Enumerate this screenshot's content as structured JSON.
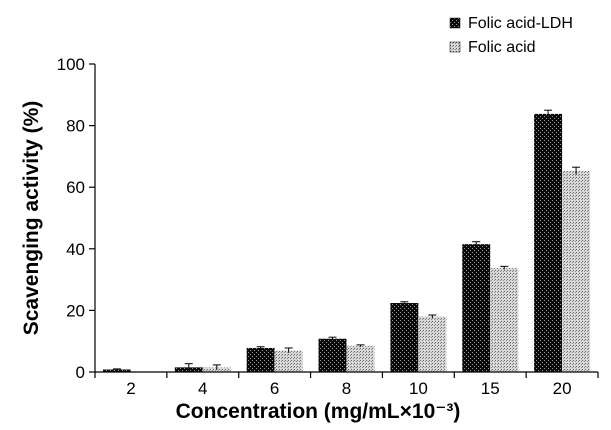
{
  "chart_data": {
    "type": "bar",
    "categories": [
      "2",
      "4",
      "6",
      "8",
      "10",
      "15",
      "20"
    ],
    "series": [
      {
        "name": "Folic acid-LDH",
        "values": [
          0.8,
          1.5,
          7.8,
          10.8,
          22.4,
          41.5,
          83.8
        ],
        "errors": [
          0.2,
          1.2,
          0.4,
          0.5,
          0.4,
          0.8,
          1.2
        ],
        "pattern": "dark-dots"
      },
      {
        "name": "Folic acid",
        "values": [
          0.0,
          1.5,
          7.0,
          8.5,
          18.0,
          33.8,
          65.3
        ],
        "errors": [
          0.0,
          0.8,
          0.8,
          0.3,
          0.5,
          0.5,
          1.2
        ],
        "pattern": "light-dots"
      }
    ],
    "title": "",
    "xlabel": "Concentration (mg/mL×10⁻³)",
    "ylabel": "Scavenging activity (%)",
    "ylim": [
      0,
      100
    ],
    "yticks": [
      0,
      20,
      40,
      60,
      80,
      100
    ],
    "grid": false,
    "legend_position": "top-right",
    "colors": {
      "dark_fill": "#0a0a0a",
      "dark_dots": "#9a9a9a",
      "light_fill": "#d8d8d8",
      "light_dots": "#6a6a6a",
      "axis": "#000000",
      "text": "#000000"
    }
  }
}
